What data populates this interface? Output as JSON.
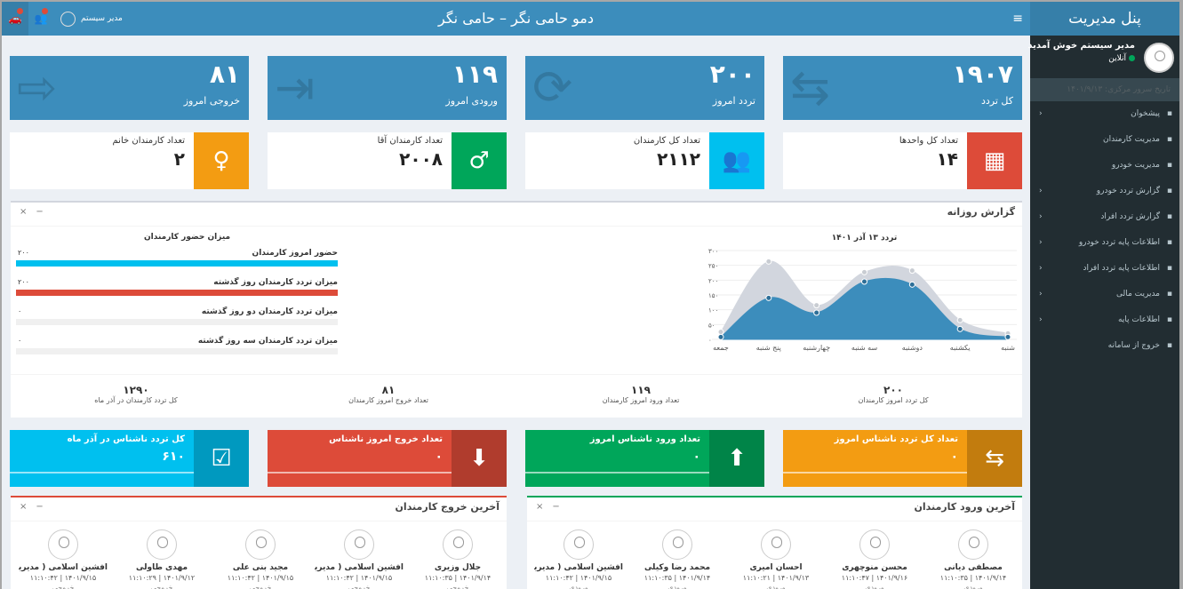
{
  "sidebar": {
    "title": "پنل مدیریت",
    "welcome": "مدیر سیستم خوش آمدید",
    "status": "آنلاین",
    "server_time": "تاریخ سرور مرکزی: ۱۴۰۱/۹/۱۳",
    "items": [
      {
        "label": "پیشخوان",
        "icon": "dashboard-icon",
        "chevron": "‹"
      },
      {
        "label": "مدیریت کارمندان",
        "icon": "users-icon",
        "chevron": ""
      },
      {
        "label": "مدیریت خودرو",
        "icon": "car-icon",
        "chevron": ""
      },
      {
        "label": "گزارش تردد خودرو",
        "icon": "area-chart-icon",
        "chevron": "‹"
      },
      {
        "label": "گزارش تردد افراد",
        "icon": "area-chart-icon",
        "chevron": "‹"
      },
      {
        "label": "اطلاعات پایه تردد خودرو",
        "icon": "car-icon",
        "chevron": "‹"
      },
      {
        "label": "اطلاعات پایه تردد افراد",
        "icon": "users-icon",
        "chevron": "‹"
      },
      {
        "label": "مدیریت مالی",
        "icon": "dollar-icon",
        "chevron": "‹"
      },
      {
        "label": "اطلاعات پایه",
        "icon": "cogs-icon",
        "chevron": "‹"
      },
      {
        "label": "خروج از سامانه",
        "icon": "sign-out-icon",
        "chevron": ""
      }
    ]
  },
  "header": {
    "title": "دمو حامی نگر – حامی نگر",
    "user": "مدیر سیستم",
    "menu_glyph": "≡",
    "car_glyph": "🚗",
    "bell_glyph": "👥"
  },
  "top_boxes": [
    {
      "value": "۱۹۰۷",
      "label": "کل تردد",
      "icon": "retweet-icon",
      "glyph": "⇆"
    },
    {
      "value": "۲۰۰",
      "label": "تردد امروز",
      "icon": "refresh-icon",
      "glyph": "⟳"
    },
    {
      "value": "۱۱۹",
      "label": "ورودی امروز",
      "icon": "sign-in-icon",
      "glyph": "⇥"
    },
    {
      "value": "۸۱",
      "label": "خروجی امروز",
      "icon": "sign-out-icon",
      "glyph": "⇨"
    }
  ],
  "info_boxes": [
    {
      "title": "تعداد کل واحدها",
      "value": "۱۴",
      "icon": "building-icon",
      "glyph": "▦",
      "color": "#dd4b39"
    },
    {
      "title": "تعداد کل کارمندان",
      "value": "۲۱۱۲",
      "icon": "users-icon",
      "glyph": "👥",
      "color": "#00c0ef"
    },
    {
      "title": "تعداد کارمندان آقا",
      "value": "۲۰۰۸",
      "icon": "male-icon",
      "glyph": "♂",
      "color": "#00a65a"
    },
    {
      "title": "تعداد کارمندان خانم",
      "value": "۲",
      "icon": "female-icon",
      "glyph": "♀",
      "color": "#f39c12"
    }
  ],
  "report": {
    "title": "گزارش روزانه",
    "close": "×",
    "minimize": "−",
    "attendance_title": "میزان حضور کارمندان",
    "progress": [
      {
        "label": "حضور امروز کارمندان",
        "value": "۲۰۰",
        "percent": 100,
        "color": "#00c0ef"
      },
      {
        "label": "میزان تردد کارمندان روز گذشته",
        "value": "۲۰۰",
        "percent": 100,
        "color": "#dd4b39"
      },
      {
        "label": "میزان تردد کارمندان دو روز گذشته",
        "value": "۰",
        "percent": 0,
        "color": "#3c8dbc"
      },
      {
        "label": "میزان تردد کارمندان سه روز گذشته",
        "value": "۰",
        "percent": 0,
        "color": "#3c8dbc"
      }
    ],
    "stats": [
      {
        "value": "۲۰۰",
        "label": "کل تردد امروز کارمندان"
      },
      {
        "value": "۱۱۹",
        "label": "تعداد ورود امروز کارمندان"
      },
      {
        "value": "۸۱",
        "label": "تعداد خروج امروز کارمندان"
      },
      {
        "value": "۱۲۹۰",
        "label": "کل تردد کارمندان در آذر ماه"
      }
    ]
  },
  "chart_data": {
    "type": "area",
    "title": "تردد ۱۳ آذر ۱۴۰۱",
    "categories": [
      "شنبه",
      "یکشنبه",
      "دوشنبه",
      "سه شنبه",
      "چهارشنبه",
      "پنج شنبه",
      "جمعه"
    ],
    "ytick_labels": [
      "۰",
      "۵۰",
      "۱۰۰",
      "۱۵۰",
      "۲۰۰",
      "۲۵۰",
      "۳۰۰"
    ],
    "ylim": [
      0,
      300
    ],
    "yticks": [
      0,
      50,
      100,
      150,
      200,
      250,
      300
    ],
    "series": [
      {
        "values": [
          20,
          65,
          232,
          227,
          115,
          263,
          25
        ],
        "color": "#d2d6de"
      },
      {
        "values": [
          8,
          35,
          185,
          195,
          90,
          140,
          8
        ],
        "color": "#3c8dbc"
      }
    ],
    "grid": true
  },
  "unknown_boxes": [
    {
      "title": "تعداد کل تردد ناشناس امروز",
      "value": "۰",
      "icon": "retweet-icon",
      "glyph": "⇆",
      "color": "#f39c12"
    },
    {
      "title": "تعداد ورود ناشناس امروز",
      "value": "۰",
      "icon": "level-up-icon",
      "glyph": "⬆",
      "color": "#00a65a"
    },
    {
      "title": "تعداد خروج امروز ناشناس",
      "value": "۰",
      "icon": "level-down-icon",
      "glyph": "⬇",
      "color": "#dd4b39"
    },
    {
      "title": "کل تردد ناشناس در آذر ماه",
      "value": "۶۱۰",
      "icon": "calendar-check-icon",
      "glyph": "☑",
      "color": "#00c0ef"
    }
  ],
  "entries": {
    "title": "آخرین ورود کارمندان",
    "people": [
      {
        "name": "مصطفی دیانی",
        "time": "۱۴۰۱/۹/۱۴ | ۱۱:۱۰:۳۵",
        "status": "ورودی"
      },
      {
        "name": "محسن منوچهری",
        "time": "۱۴۰۱/۹/۱۶ | ۱۱:۱۰:۴۷",
        "status": "ورودی"
      },
      {
        "name": "احسان امیری",
        "time": "۱۴۰۱/۹/۱۳ | ۱۱:۱۰:۲۱",
        "status": "ورودی"
      },
      {
        "name": "محمد رضا وکیلی",
        "time": "۱۴۰۱/۹/۱۴ | ۱۱:۱۰:۳۵",
        "status": "ورودی"
      },
      {
        "name": "افشین اسلامی ( مدیریت ...",
        "time": "۱۴۰۱/۹/۱۵ | ۱۱:۱۰:۴۲",
        "status": "ورودی"
      }
    ]
  },
  "exits": {
    "title": "آخرین خروج کارمندان",
    "people": [
      {
        "name": "جلال وزیری",
        "time": "۱۴۰۱/۹/۱۴ | ۱۱:۱۰:۳۵",
        "status": "خروجی"
      },
      {
        "name": "افشین اسلامی ( مدیریت ...",
        "time": "۱۴۰۱/۹/۱۵ | ۱۱:۱۰:۴۲",
        "status": "خروجی"
      },
      {
        "name": "مجید بنی علی",
        "time": "۱۴۰۱/۹/۱۵ | ۱۱:۱۰:۴۲",
        "status": "خروجی"
      },
      {
        "name": "مهدی طاولی",
        "time": "۱۴۰۱/۹/۱۲ | ۱۱:۱۰:۲۹",
        "status": "خروجی"
      },
      {
        "name": "افشین اسلامی ( مدیریت ...",
        "time": "۱۴۰۱/۹/۱۵ | ۱۱:۱۰:۴۲",
        "status": "خروجی"
      }
    ]
  }
}
